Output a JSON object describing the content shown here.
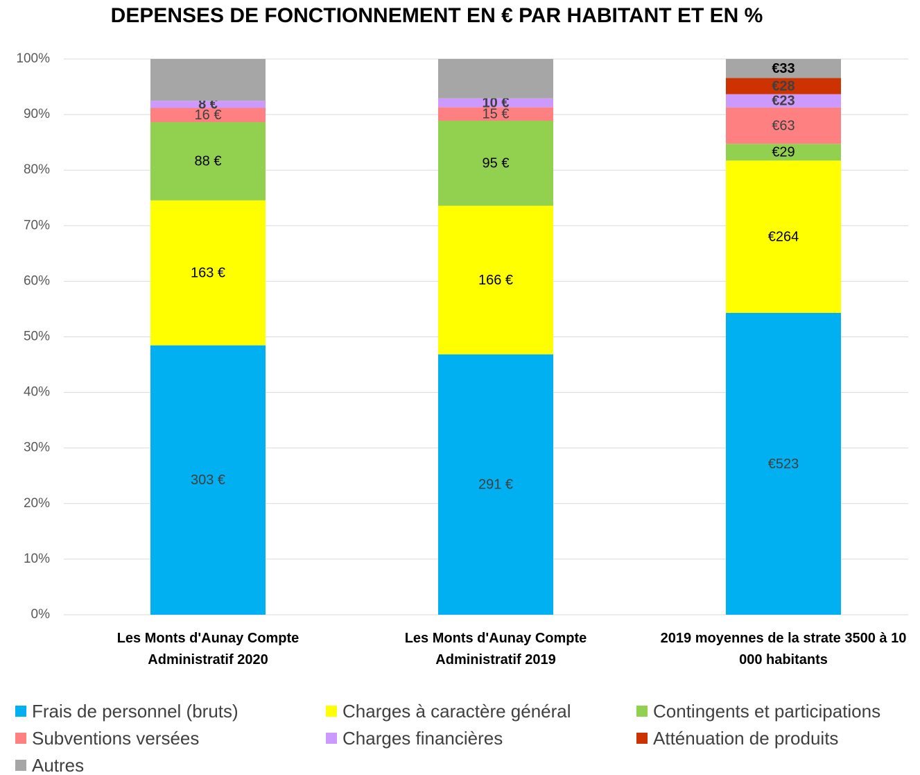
{
  "chart_data": {
    "type": "stacked_bar_percent",
    "title": "DEPENSES DE FONCTIONNEMENT EN € PAR HABITANT ET EN %",
    "categories": [
      "Les Monts d'Aunay Compte Administratif 2020",
      "Les Monts d'Aunay Compte Administratif 2019",
      "2019 moyennes de la strate 3500 à 10 000 habitants"
    ],
    "ylim": [
      0,
      100
    ],
    "yticks": [
      {
        "value": 0,
        "label": "0%"
      },
      {
        "value": 10,
        "label": "10%"
      },
      {
        "value": 20,
        "label": "20%"
      },
      {
        "value": 30,
        "label": "30%"
      },
      {
        "value": 40,
        "label": "40%"
      },
      {
        "value": 50,
        "label": "50%"
      },
      {
        "value": 60,
        "label": "60%"
      },
      {
        "value": 70,
        "label": "70%"
      },
      {
        "value": 80,
        "label": "80%"
      },
      {
        "value": 90,
        "label": "90%"
      },
      {
        "value": 100,
        "label": "100%"
      }
    ],
    "grid": true,
    "legend": "bottom",
    "series": [
      {
        "name": "Frais de personnel (bruts)",
        "color": "#00b0f0",
        "values": [
          303,
          291,
          523
        ],
        "value_labels": [
          "303 €",
          "291 €",
          "€523"
        ]
      },
      {
        "name": "Charges à caractère général",
        "color": "#ffff00",
        "values": [
          163,
          166,
          264
        ],
        "value_labels": [
          "163 €",
          "166 €",
          "€264"
        ]
      },
      {
        "name": "Contingents et participations",
        "color": "#92d050",
        "values": [
          88,
          95,
          29
        ],
        "value_labels": [
          "88 €",
          "95 €",
          "€29"
        ]
      },
      {
        "name": "Subventions versées",
        "color": "#ff8080",
        "values": [
          16,
          15,
          63
        ],
        "value_labels": [
          "16 €",
          "15 €",
          "€63"
        ]
      },
      {
        "name": "Charges financières",
        "color": "#cc99ff",
        "values": [
          8,
          10,
          23
        ],
        "value_labels": [
          "8 €",
          "10 €",
          "€23"
        ]
      },
      {
        "name": "Atténuation de produits",
        "color": "#cc3300",
        "values": [
          0,
          0,
          28
        ],
        "value_labels": [
          null,
          null,
          "€28"
        ]
      },
      {
        "name": "Autres",
        "color": "#a6a6a6",
        "values": [
          47,
          44,
          33
        ],
        "value_labels": [
          null,
          null,
          "€33"
        ]
      }
    ]
  }
}
